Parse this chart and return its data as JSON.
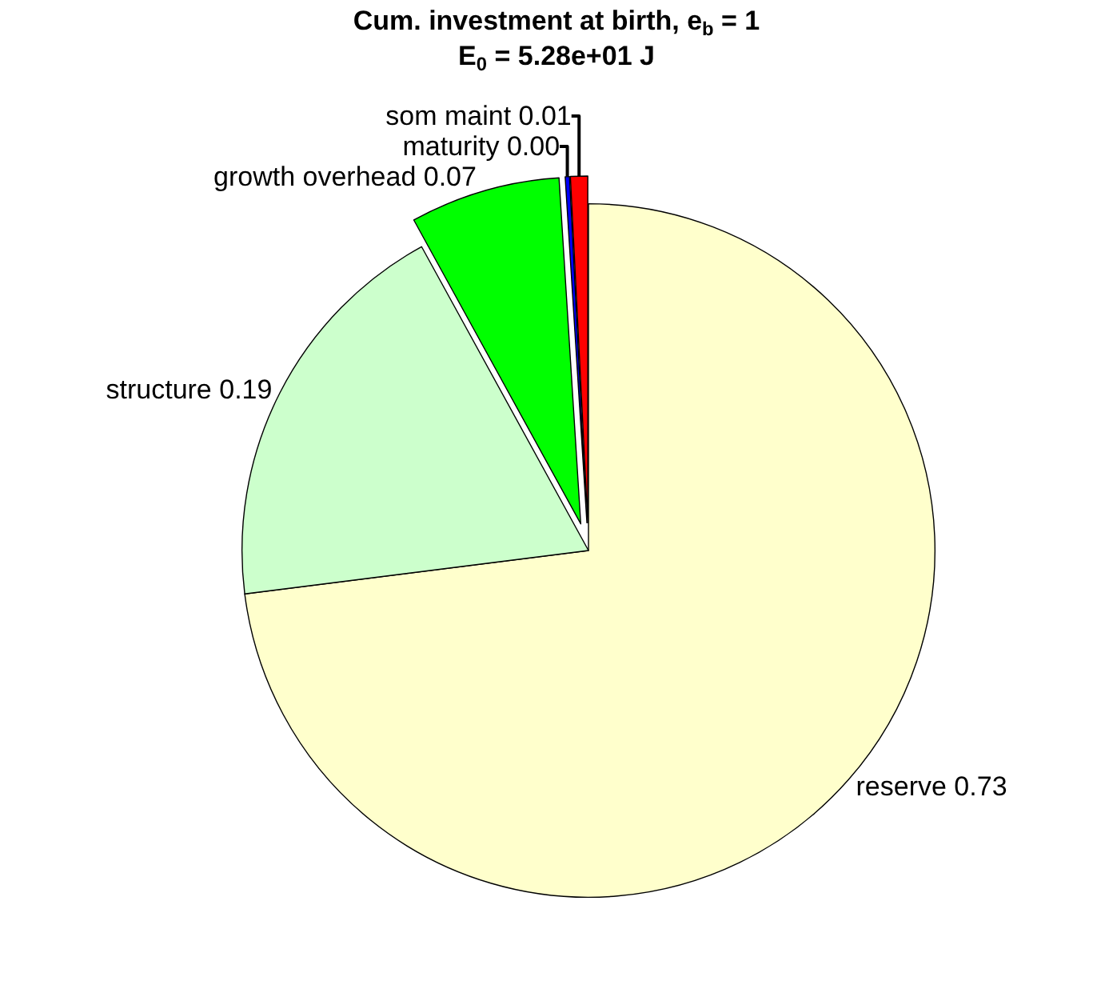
{
  "chart_data": {
    "type": "pie",
    "title": "Cum. investment at birth, e$_{b}$ = 1",
    "subtitle": "E$_{0}$ = 5.28e+01 J",
    "categories": [
      "reserve",
      "som maint",
      "maturity",
      "growth overhead",
      "structure"
    ],
    "values": [
      0.73,
      0.008,
      0.002,
      0.07,
      0.19
    ],
    "value_labels": [
      "0.73",
      "0.01",
      "0.00",
      "0.07",
      "0.19"
    ],
    "colors": [
      "#ffffcc",
      "#ff0000",
      "#0000ff",
      "#00ff00",
      "#ccffcc"
    ],
    "legend": false
  }
}
